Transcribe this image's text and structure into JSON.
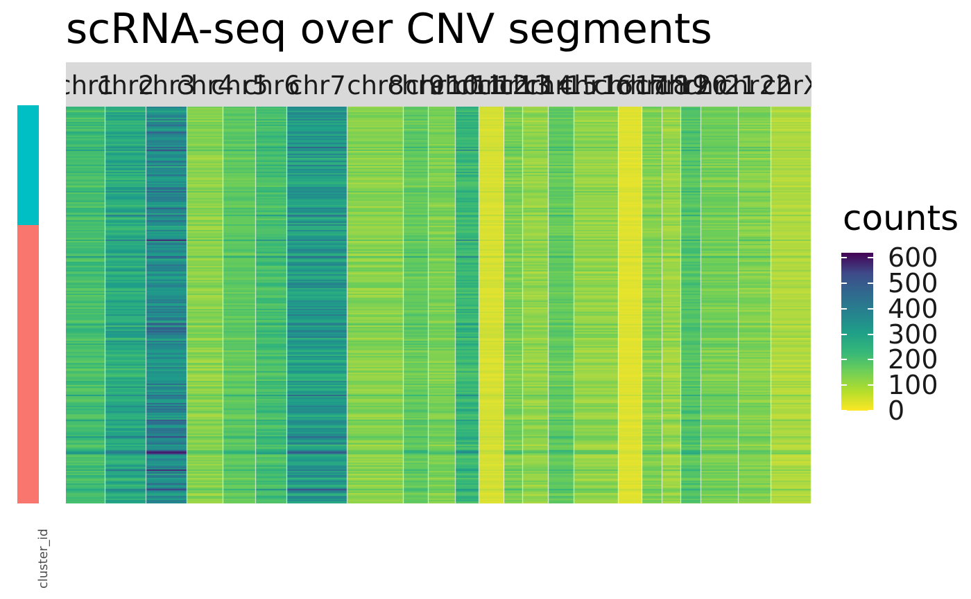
{
  "title": "scRNA-seq over CNV segments",
  "annotation": {
    "label": "cluster_id",
    "colors": {
      "cluster_top": "#00BFC4",
      "cluster_bottom": "#F8766D"
    },
    "top_fraction": 0.3
  },
  "legend": {
    "title": "counts",
    "ticks": [
      "0",
      "100",
      "200",
      "300",
      "400",
      "500",
      "600"
    ],
    "range": [
      0,
      620
    ],
    "colormap": "viridis (reversed: high = dark purple, low = yellow)"
  },
  "chart_data": {
    "type": "heatmap",
    "title": "scRNA-seq over CNV segments",
    "facets": [
      "chr1",
      "chr2",
      "chr3",
      "chr4",
      "chr5",
      "chr6",
      "chr7",
      "chr8",
      "chr9",
      "chr10",
      "chr11",
      "chr12",
      "chr13",
      "chr14",
      "chr15",
      "chr16",
      "chr17",
      "chr18",
      "chr19",
      "chr20",
      "chr21",
      "chr22",
      "chrX"
    ],
    "facet_labels_visible": [
      "chr1",
      "chr2",
      "chr3",
      "chr4",
      "chr5",
      "chr6",
      "chr7",
      "chr8",
      "chr9",
      "chr10",
      "chr11",
      "chr12",
      "chr13",
      "chr14",
      "chr15",
      "chr16",
      "chr17",
      "chr18",
      "chr19",
      "chr20",
      "chr21",
      "chr22",
      "chrX"
    ],
    "segments_per_facet": [
      1,
      1,
      1,
      1,
      1,
      1,
      1,
      1,
      1,
      1,
      1,
      1,
      1,
      1,
      1,
      1,
      1,
      1,
      1,
      1,
      1,
      1,
      1
    ],
    "segment_mean_counts": [
      130,
      190,
      280,
      60,
      95,
      130,
      230,
      60,
      90,
      70,
      150,
      20,
      70,
      55,
      90,
      55,
      15,
      65,
      50,
      110,
      75,
      65,
      40
    ],
    "xlabel": "",
    "ylabel": "",
    "color_scale": {
      "name": "counts",
      "min": 0,
      "max": 620,
      "breaks": [
        0,
        100,
        200,
        300,
        400,
        500,
        600
      ]
    },
    "legend_position": "right",
    "grid": false
  }
}
